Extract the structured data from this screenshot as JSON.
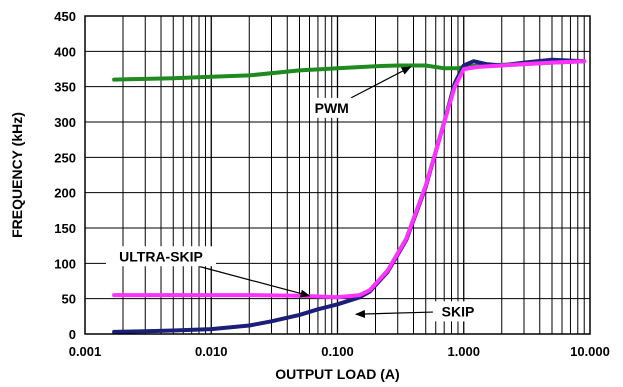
{
  "chart_data": {
    "type": "line",
    "xscale": "log",
    "xlim": [
      0.001,
      10
    ],
    "ylim": [
      0,
      450
    ],
    "xlabel": "OUTPUT LOAD (A)",
    "ylabel": "FREQUENCY (kHz)",
    "grid": true,
    "xticks": [
      "0.001",
      "0.010",
      "0.100",
      "1.000",
      "10.000"
    ],
    "yticks": [
      "0",
      "50",
      "100",
      "150",
      "200",
      "250",
      "300",
      "350",
      "400",
      "450"
    ],
    "series": [
      {
        "name": "PWM",
        "color": "#1f8a1f",
        "x": [
          0.0017,
          0.003,
          0.005,
          0.01,
          0.02,
          0.05,
          0.08,
          0.1,
          0.2,
          0.3,
          0.5,
          0.7,
          0.9,
          1.0,
          1.3,
          2,
          3,
          5,
          9
        ],
        "y": [
          360,
          361,
          362,
          364,
          366,
          373,
          375,
          376,
          379,
          380,
          380,
          376,
          376,
          378,
          380,
          381,
          382,
          384,
          386
        ]
      },
      {
        "name": "ULTRA-SKIP",
        "color": "#ff33ff",
        "x": [
          0.0017,
          0.003,
          0.005,
          0.01,
          0.02,
          0.05,
          0.1,
          0.15,
          0.18,
          0.25,
          0.35,
          0.5,
          0.7,
          0.85,
          1.0,
          1.3,
          2,
          3,
          5,
          9
        ],
        "y": [
          55,
          55,
          55,
          55,
          55,
          54,
          52,
          55,
          62,
          90,
          135,
          210,
          300,
          350,
          375,
          378,
          380,
          382,
          384,
          386
        ]
      },
      {
        "name": "SKIP",
        "color": "#1c1f7a",
        "x": [
          0.0017,
          0.003,
          0.005,
          0.01,
          0.02,
          0.03,
          0.05,
          0.07,
          0.1,
          0.15,
          0.18,
          0.25,
          0.35,
          0.5,
          0.7,
          0.85,
          1.0,
          1.2,
          1.5,
          2,
          3,
          5,
          9
        ],
        "y": [
          3,
          4,
          5,
          7,
          12,
          18,
          27,
          35,
          42,
          52,
          60,
          88,
          133,
          208,
          300,
          355,
          380,
          386,
          382,
          380,
          384,
          388,
          386
        ]
      }
    ],
    "annotations": [
      {
        "text": "PWM",
        "x": 0.09,
        "y": 320,
        "arrow_to": [
          0.38,
          378
        ]
      },
      {
        "text": "ULTRA-SKIP",
        "x": 0.004,
        "y": 110,
        "arrow_to": [
          0.06,
          54
        ]
      },
      {
        "text": "SKIP",
        "x": 0.9,
        "y": 32,
        "arrow_to": [
          0.14,
          28
        ]
      }
    ]
  }
}
